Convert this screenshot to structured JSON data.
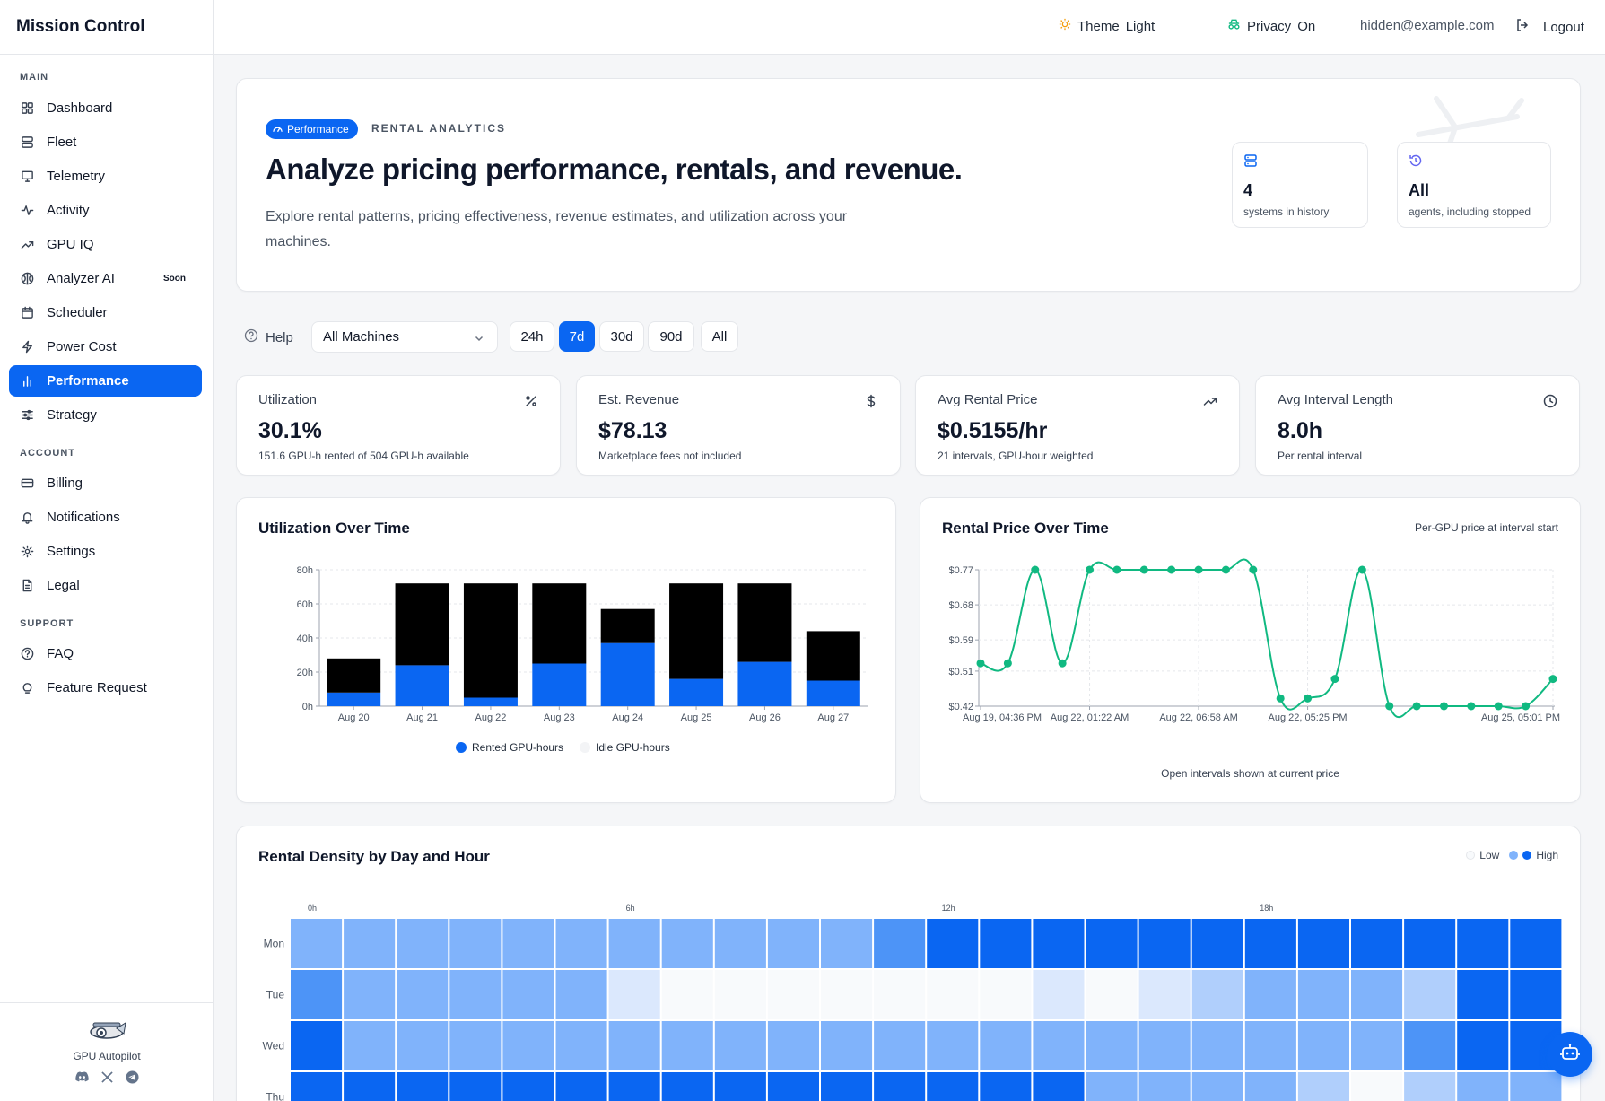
{
  "app": {
    "title": "Mission Control"
  },
  "sidebar": {
    "sections": {
      "main": "MAIN",
      "account": "ACCOUNT",
      "support": "SUPPORT"
    },
    "items": [
      {
        "label": "Dashboard",
        "icon": "dashboard-icon"
      },
      {
        "label": "Fleet",
        "icon": "server-icon"
      },
      {
        "label": "Telemetry",
        "icon": "monitor-icon"
      },
      {
        "label": "Activity",
        "icon": "activity-icon"
      },
      {
        "label": "GPU IQ",
        "icon": "trending-up-icon"
      },
      {
        "label": "Analyzer AI",
        "icon": "brain-icon",
        "badge": "Soon"
      },
      {
        "label": "Scheduler",
        "icon": "calendar-icon"
      },
      {
        "label": "Power Cost",
        "icon": "bolt-icon"
      },
      {
        "label": "Performance",
        "icon": "bar-chart-icon",
        "active": true
      },
      {
        "label": "Strategy",
        "icon": "sliders-icon"
      },
      {
        "label": "Billing",
        "icon": "credit-card-icon"
      },
      {
        "label": "Notifications",
        "icon": "bell-icon"
      },
      {
        "label": "Settings",
        "icon": "gear-icon"
      },
      {
        "label": "Legal",
        "icon": "document-icon"
      },
      {
        "label": "FAQ",
        "icon": "help-circle-icon"
      },
      {
        "label": "Feature Request",
        "icon": "lightbulb-icon"
      }
    ],
    "footer": {
      "name": "GPU Autopilot"
    }
  },
  "topbar": {
    "theme": "Theme",
    "theme_value": "Light",
    "privacy": "Privacy",
    "privacy_value": "On",
    "email": "hidden@example.com",
    "logout": "Logout"
  },
  "hero": {
    "pill": "Performance",
    "eyebrow": "RENTAL ANALYTICS",
    "title": "Analyze pricing performance, rentals, and revenue.",
    "description": "Explore rental patterns, pricing effectiveness, revenue estimates, and utilization across your machines.",
    "cards": [
      {
        "value": "4",
        "label": "systems in history"
      },
      {
        "value": "All",
        "label": "agents, including stopped"
      }
    ]
  },
  "filters": {
    "help": "Help",
    "machine": "All Machines",
    "ranges": [
      "24h",
      "7d",
      "30d",
      "90d",
      "All"
    ],
    "active_range": "7d"
  },
  "stats": [
    {
      "label": "Utilization",
      "value": "30.1%",
      "sub": "151.6 GPU-h rented of 504 GPU-h available",
      "icon": "percent-icon"
    },
    {
      "label": "Est. Revenue",
      "value": "$78.13",
      "sub": "Marketplace fees not included",
      "icon": "dollar-icon"
    },
    {
      "label": "Avg Rental Price",
      "value": "$0.5155/hr",
      "sub": "21 intervals, GPU-hour weighted",
      "icon": "trending-up-icon"
    },
    {
      "label": "Avg Interval Length",
      "value": "8.0h",
      "sub": "Per rental interval",
      "icon": "clock-icon"
    }
  ],
  "charts": {
    "utilization": {
      "title": "Utilization Over Time"
    },
    "price": {
      "title": "Rental Price Over Time",
      "note": "Per-GPU price at interval start",
      "footnote": "Open intervals shown at current price"
    },
    "heatmap": {
      "title": "Rental Density by Day and Hour",
      "legend_low": "Low",
      "legend_high": "High"
    }
  },
  "chart_data": [
    {
      "type": "bar",
      "stacked": true,
      "title": "Utilization Over Time",
      "categories": [
        "Aug 20",
        "Aug 21",
        "Aug 22",
        "Aug 23",
        "Aug 24",
        "Aug 25",
        "Aug 26",
        "Aug 27"
      ],
      "series": [
        {
          "name": "Rented GPU-hours",
          "color": "#0a66f2",
          "values": [
            8,
            24,
            5,
            25,
            37,
            16,
            26,
            15
          ]
        },
        {
          "name": "Idle GPU-hours",
          "color": "#000000",
          "values": [
            20,
            48,
            67,
            47,
            20,
            56,
            46,
            29
          ]
        }
      ],
      "ylim": [
        0,
        80
      ],
      "yticks": [
        "0h",
        "20h",
        "40h",
        "60h",
        "80h"
      ],
      "ytick_values": [
        0,
        20,
        40,
        60,
        80
      ],
      "grid": true,
      "legend": "bottom"
    },
    {
      "type": "line",
      "title": "Rental Price Over Time",
      "color": "#10b981",
      "y": [
        0.53,
        0.53,
        0.77,
        0.53,
        0.77,
        0.77,
        0.77,
        0.77,
        0.77,
        0.77,
        0.77,
        0.44,
        0.44,
        0.49,
        0.77,
        0.42,
        0.42,
        0.42,
        0.42,
        0.42,
        0.42,
        0.49
      ],
      "ylim": [
        0.42,
        0.77
      ],
      "yticks": [
        "$0.42",
        "$0.51",
        "$0.59",
        "$0.68",
        "$0.77"
      ],
      "ytick_values": [
        0.42,
        0.51,
        0.59,
        0.68,
        0.77
      ],
      "xticks": [
        "Aug 19, 04:36 PM",
        "Aug 22, 01:22 AM",
        "Aug 22, 06:58 AM",
        "Aug 22, 05:25 PM",
        "Aug 25, 05:01 PM"
      ],
      "grid": true
    },
    {
      "type": "heatmap",
      "title": "Rental Density by Day and Hour",
      "rows": [
        "Mon",
        "Tue",
        "Wed",
        "Thu"
      ],
      "col_labels": {
        "0": "0h",
        "6": "6h",
        "12": "12h",
        "18": "18h"
      },
      "values": [
        [
          0.5,
          0.5,
          0.5,
          0.5,
          0.5,
          0.5,
          0.5,
          0.5,
          0.5,
          0.5,
          0.5,
          0.7,
          1,
          1,
          1,
          1,
          1,
          1,
          1,
          1,
          1,
          1,
          1,
          1
        ],
        [
          0.7,
          0.5,
          0.5,
          0.5,
          0.5,
          0.5,
          0.15,
          0.02,
          0.02,
          0.02,
          0.02,
          0.02,
          0.02,
          0.02,
          0.15,
          0.02,
          0.15,
          0.3,
          0.5,
          0.5,
          0.5,
          0.3,
          1,
          1
        ],
        [
          1,
          0.5,
          0.5,
          0.5,
          0.5,
          0.5,
          0.5,
          0.5,
          0.5,
          0.5,
          0.5,
          0.5,
          0.5,
          0.5,
          0.5,
          0.5,
          0.5,
          0.5,
          0.5,
          0.5,
          0.5,
          0.7,
          1,
          1
        ],
        [
          1,
          1,
          1,
          1,
          1,
          1,
          1,
          1,
          1,
          1,
          1,
          1,
          1,
          1,
          1,
          0.5,
          0.5,
          0.5,
          0.5,
          0.3,
          0.02,
          0.3,
          0.5,
          0.5
        ]
      ]
    }
  ]
}
